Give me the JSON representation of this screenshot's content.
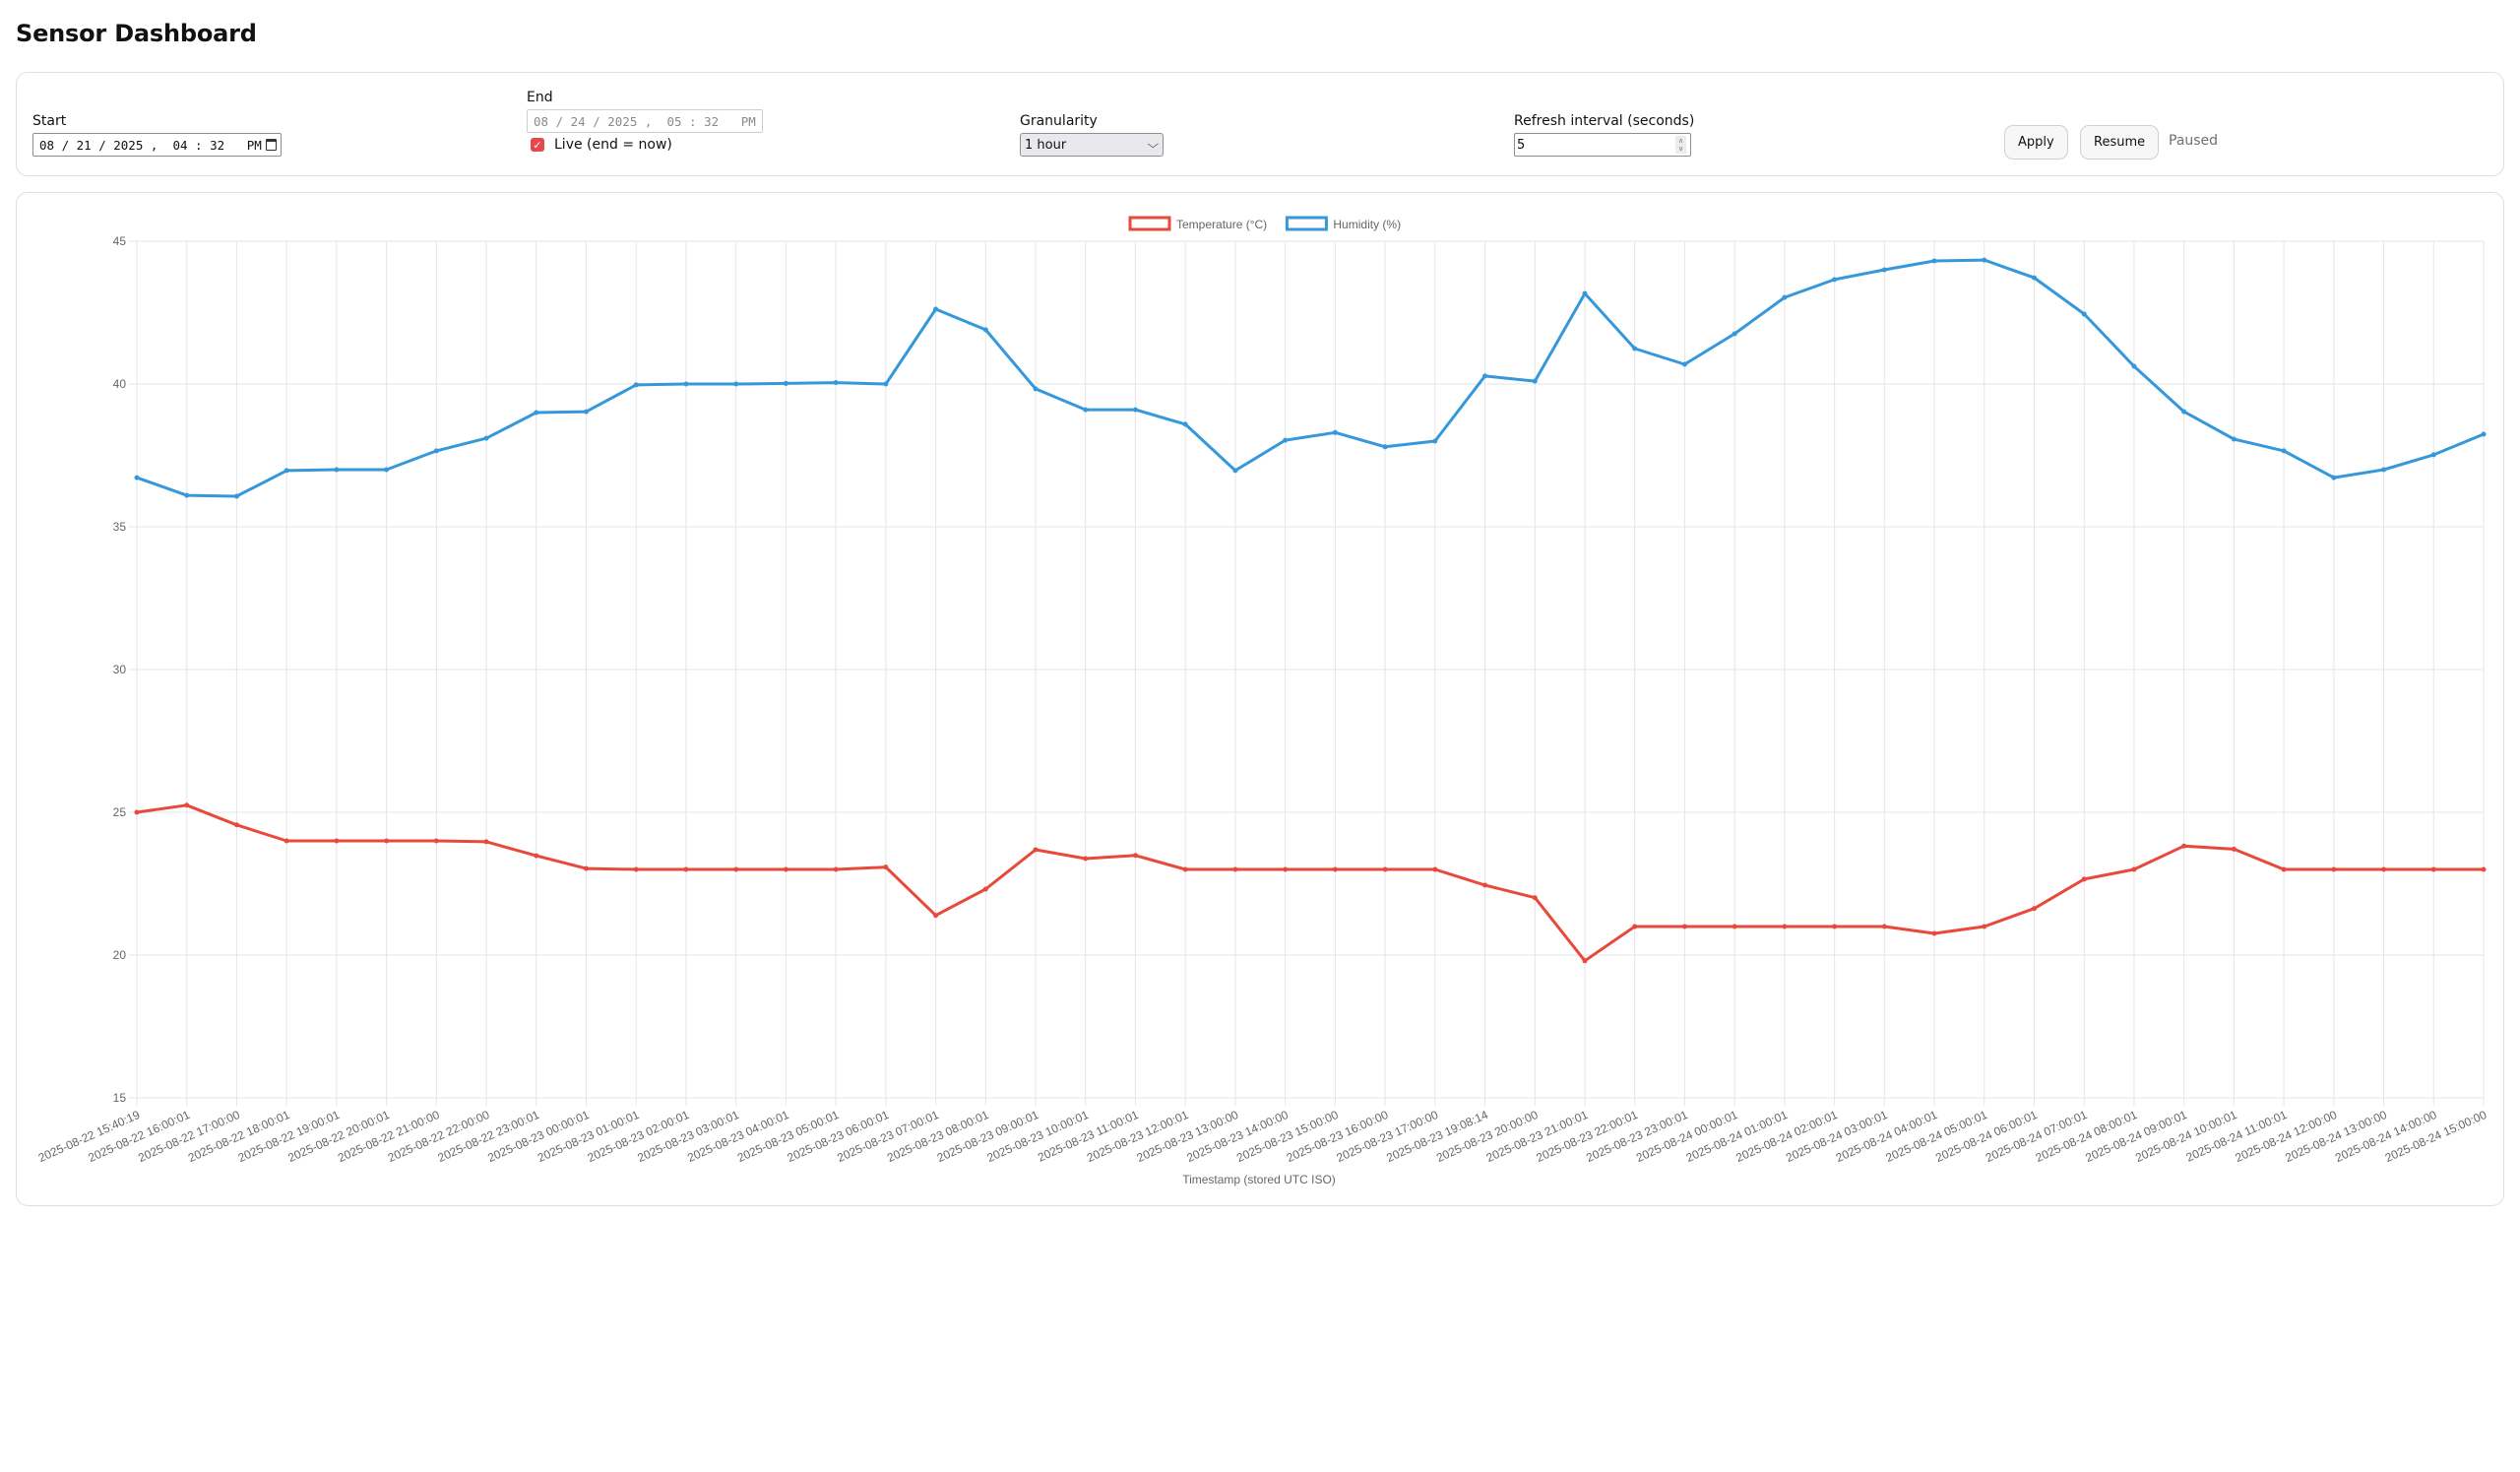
{
  "page": {
    "title": "Sensor Dashboard"
  },
  "controls": {
    "start": {
      "label": "Start",
      "value": "08 / 21 / 2025 ,  04 : 32   PM"
    },
    "end": {
      "label": "End",
      "value": "08 / 24 / 2025 ,  05 : 32   PM",
      "disabled": true
    },
    "live": {
      "label": "Live (end = now)",
      "checked": true
    },
    "granularity": {
      "label": "Granularity",
      "value": "1 hour"
    },
    "refresh": {
      "label": "Refresh interval (seconds)",
      "value": "5"
    },
    "apply_label": "Apply",
    "resume_label": "Resume",
    "status": "Paused"
  },
  "icons": {
    "calendar": "calendar-icon",
    "check": "✓",
    "chevron": "⌄",
    "spin_up": "∧",
    "spin_down": "∨"
  },
  "colors": {
    "temperature": "#e8493a",
    "humidity": "#3498db",
    "grid": "#e5e5e5",
    "tick_text": "#666666",
    "checkbox": "#e5484d"
  },
  "chart_data": {
    "type": "line",
    "title": "",
    "xlabel": "Timestamp (stored UTC ISO)",
    "ylabel": "",
    "ylim": [
      15,
      45
    ],
    "yticks": [
      15,
      20,
      25,
      30,
      35,
      40,
      45
    ],
    "grid": true,
    "legend_position": "top",
    "x": [
      "2025-08-22 15:40:19",
      "2025-08-22 16:00:01",
      "2025-08-22 17:00:00",
      "2025-08-22 18:00:01",
      "2025-08-22 19:00:01",
      "2025-08-22 20:00:01",
      "2025-08-22 21:00:00",
      "2025-08-22 22:00:00",
      "2025-08-22 23:00:01",
      "2025-08-23 00:00:01",
      "2025-08-23 01:00:01",
      "2025-08-23 02:00:01",
      "2025-08-23 03:00:01",
      "2025-08-23 04:00:01",
      "2025-08-23 05:00:01",
      "2025-08-23 06:00:01",
      "2025-08-23 07:00:01",
      "2025-08-23 08:00:01",
      "2025-08-23 09:00:01",
      "2025-08-23 10:00:01",
      "2025-08-23 11:00:01",
      "2025-08-23 12:00:01",
      "2025-08-23 13:00:00",
      "2025-08-23 14:00:00",
      "2025-08-23 15:00:00",
      "2025-08-23 16:00:00",
      "2025-08-23 17:00:00",
      "2025-08-23 19:08:14",
      "2025-08-23 20:00:00",
      "2025-08-23 21:00:01",
      "2025-08-23 22:00:01",
      "2025-08-23 23:00:01",
      "2025-08-24 00:00:01",
      "2025-08-24 01:00:01",
      "2025-08-24 02:00:01",
      "2025-08-24 03:00:01",
      "2025-08-24 04:00:01",
      "2025-08-24 05:00:01",
      "2025-08-24 06:00:01",
      "2025-08-24 07:00:01",
      "2025-08-24 08:00:01",
      "2025-08-24 09:00:01",
      "2025-08-24 10:00:01",
      "2025-08-24 11:00:01",
      "2025-08-24 12:00:00",
      "2025-08-24 13:00:00",
      "2025-08-24 14:00:00",
      "2025-08-24 15:00:00"
    ],
    "series": [
      {
        "name": "Temperature (°C)",
        "color": "#e8493a",
        "values": [
          25.0,
          25.25,
          24.56,
          24.0,
          24.0,
          24.0,
          24.0,
          23.97,
          23.48,
          23.03,
          23.0,
          23.0,
          23.0,
          23.0,
          23.0,
          23.08,
          21.39,
          22.31,
          23.69,
          23.38,
          23.49,
          23.0,
          23.0,
          23.0,
          23.0,
          23.0,
          23.0,
          22.45,
          22.01,
          19.8,
          21.0,
          21.0,
          21.0,
          21.0,
          21.0,
          21.0,
          20.76,
          21.0,
          21.63,
          22.66,
          23.0,
          23.82,
          23.71,
          23.0,
          23.0,
          23.0,
          23.0,
          23.0
        ]
      },
      {
        "name": "Humidity (%)",
        "color": "#3498db",
        "values": [
          36.72,
          36.1,
          36.07,
          36.97,
          37.0,
          37.0,
          37.66,
          38.1,
          39.0,
          39.03,
          39.97,
          40.0,
          40.0,
          40.02,
          40.05,
          40.0,
          42.62,
          41.9,
          39.83,
          39.1,
          39.1,
          38.59,
          36.97,
          38.03,
          38.3,
          37.8,
          38.0,
          40.28,
          40.1,
          43.17,
          41.24,
          40.69,
          41.76,
          43.03,
          43.66,
          44.0,
          44.31,
          44.34,
          43.72,
          42.45,
          40.62,
          39.03,
          38.07,
          37.66,
          36.72,
          37.0,
          37.52,
          38.24
        ]
      }
    ]
  }
}
